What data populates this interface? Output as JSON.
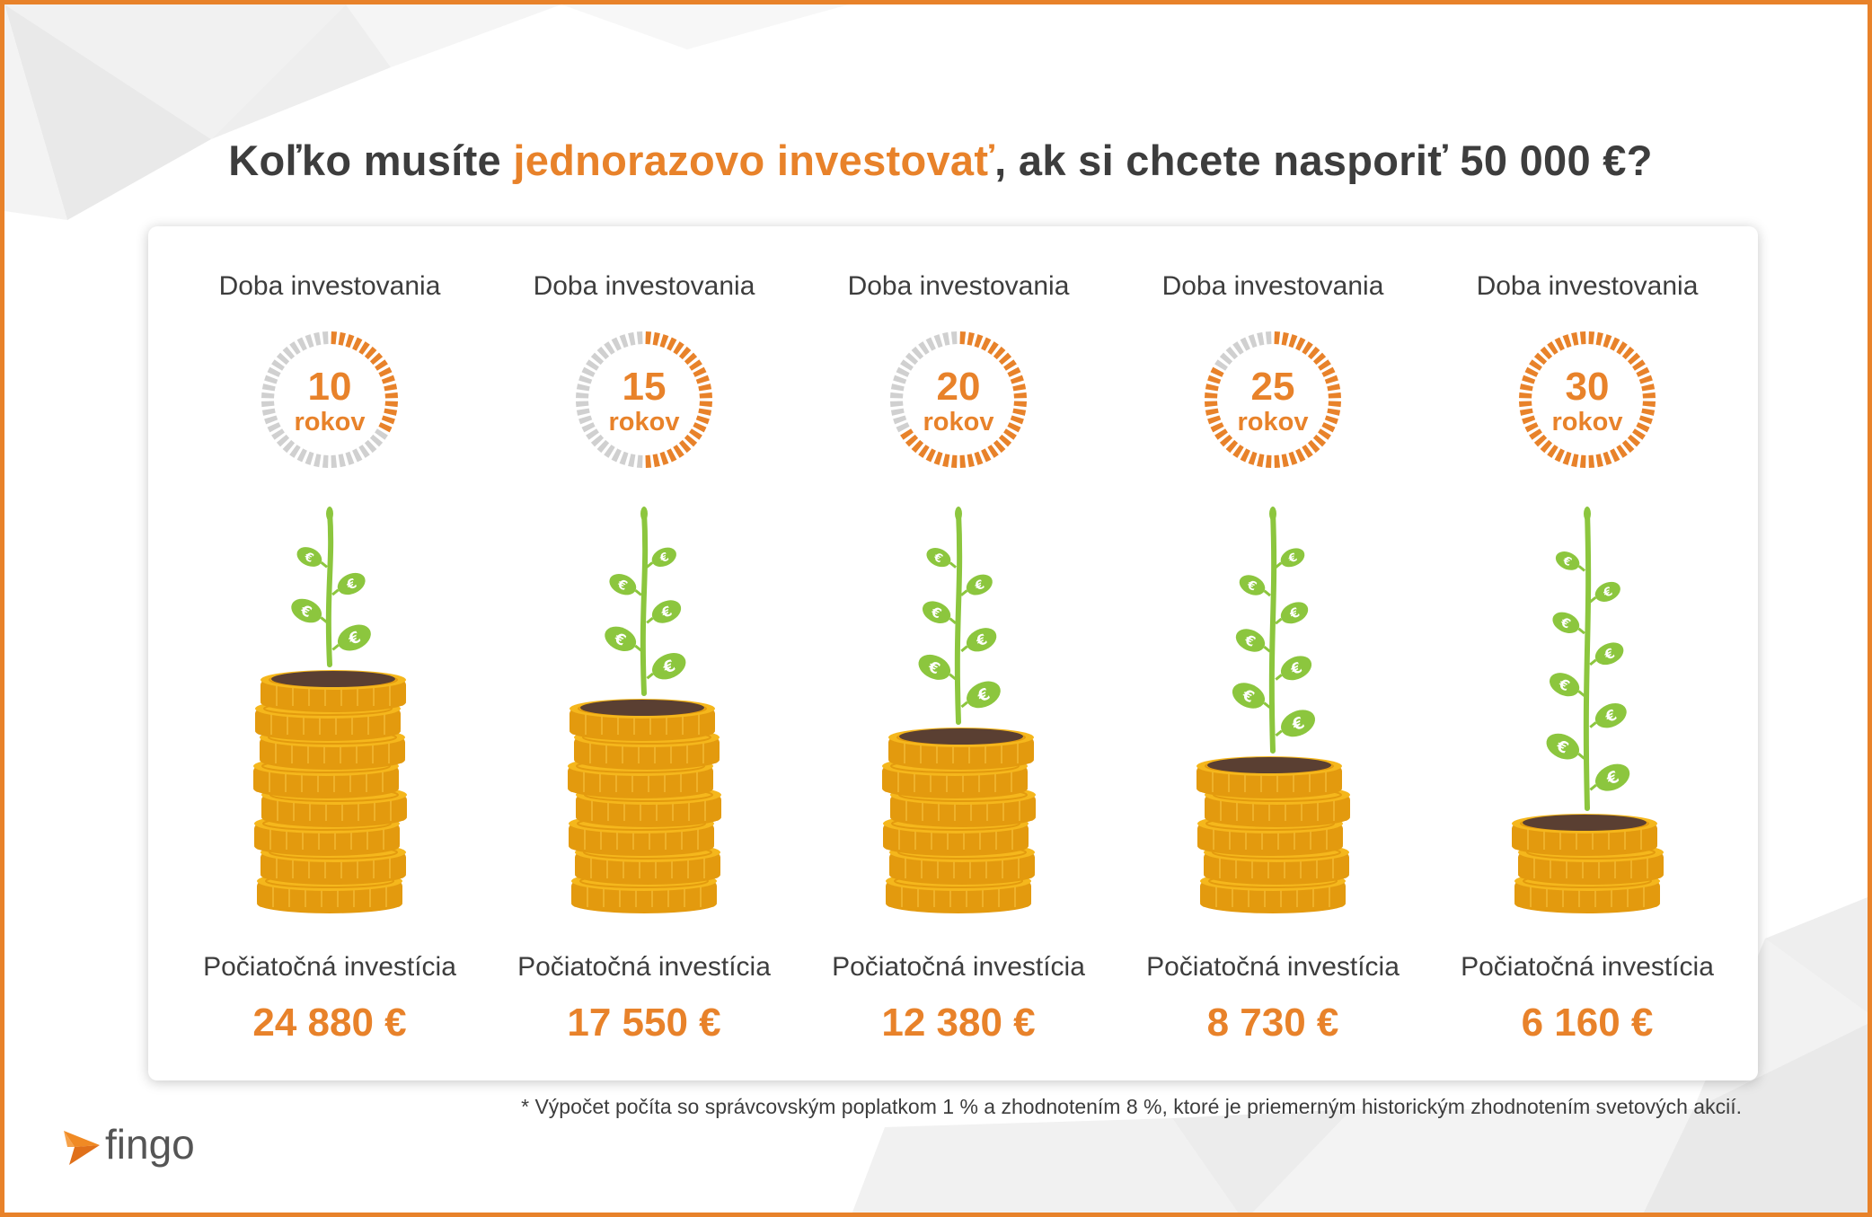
{
  "title": {
    "part1": "Koľko musíte ",
    "highlight": "jednorazovo investovať",
    "part2": ", ak si chcete nasporiť 50 000 €?"
  },
  "columns": [
    {
      "top_label": "Doba investovania",
      "years": "10",
      "unit": "rokov",
      "progress": 0.333,
      "coins": 8,
      "leaves": 4,
      "bottom_label": "Počiatočná investícia",
      "amount": "24 880 €"
    },
    {
      "top_label": "Doba investovania",
      "years": "15",
      "unit": "rokov",
      "progress": 0.5,
      "coins": 7,
      "leaves": 5,
      "bottom_label": "Počiatočná investícia",
      "amount": "17 550 €"
    },
    {
      "top_label": "Doba investovania",
      "years": "20",
      "unit": "rokov",
      "progress": 0.667,
      "coins": 6,
      "leaves": 6,
      "bottom_label": "Počiatočná investícia",
      "amount": "12 380 €"
    },
    {
      "top_label": "Doba investovania",
      "years": "25",
      "unit": "rokov",
      "progress": 0.833,
      "coins": 5,
      "leaves": 7,
      "bottom_label": "Počiatočná investícia",
      "amount": "8 730 €"
    },
    {
      "top_label": "Doba investovania",
      "years": "30",
      "unit": "rokov",
      "progress": 1.0,
      "coins": 3,
      "leaves": 8,
      "bottom_label": "Počiatočná investícia",
      "amount": "6 160 €"
    }
  ],
  "footnote": "* Výpočet počíta so správcovským poplatkom 1 % a zhodnotením 8 %, ktoré je priemerným historickým zhodnotením svetových akcií.",
  "logo": {
    "text": "fingo",
    "icon": "fingo-bird-icon"
  },
  "leaf_symbol": "€",
  "colors": {
    "accent": "#e8822a",
    "text": "#3d3d3d",
    "ring_inactive": "#d0d0d0",
    "coin": "#f5b71c",
    "coin_edge": "#e39a0e",
    "soil": "#5a3f32",
    "leaf": "#8cc63e",
    "frame": "#e8822a"
  }
}
